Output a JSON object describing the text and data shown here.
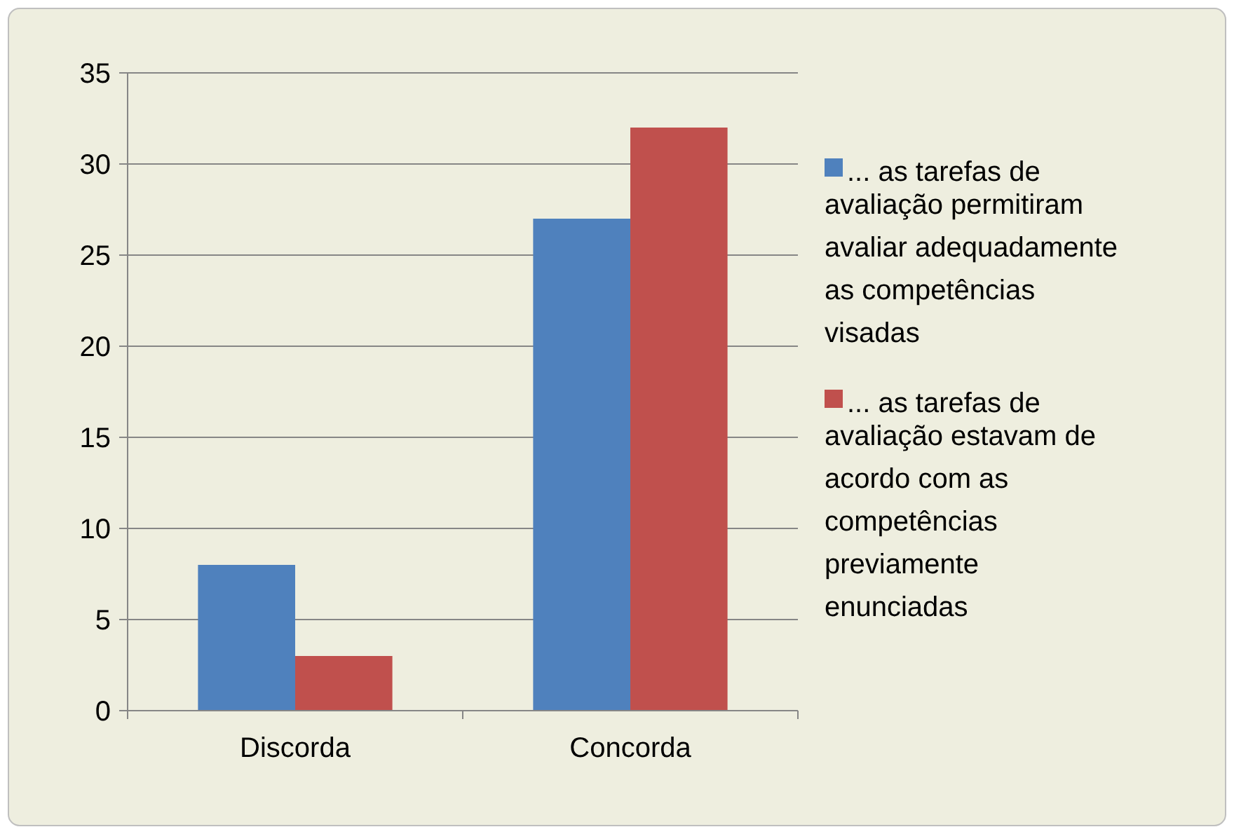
{
  "chart_data": {
    "type": "bar",
    "categories": [
      "Discorda",
      "Concorda"
    ],
    "series": [
      {
        "name": "... as tarefas de avaliação permitiram avaliar adequadamente as competências visadas",
        "color": "#4f81bd",
        "values": [
          8,
          27
        ]
      },
      {
        "name": "... as tarefas de avaliação estavam de acordo com as competências previamente enunciadas",
        "color": "#c0504d",
        "values": [
          3,
          32
        ]
      }
    ],
    "ylim": [
      0,
      35
    ],
    "yticks": [
      0,
      5,
      10,
      15,
      20,
      25,
      30,
      35
    ],
    "grid": "y",
    "legend": "right"
  }
}
